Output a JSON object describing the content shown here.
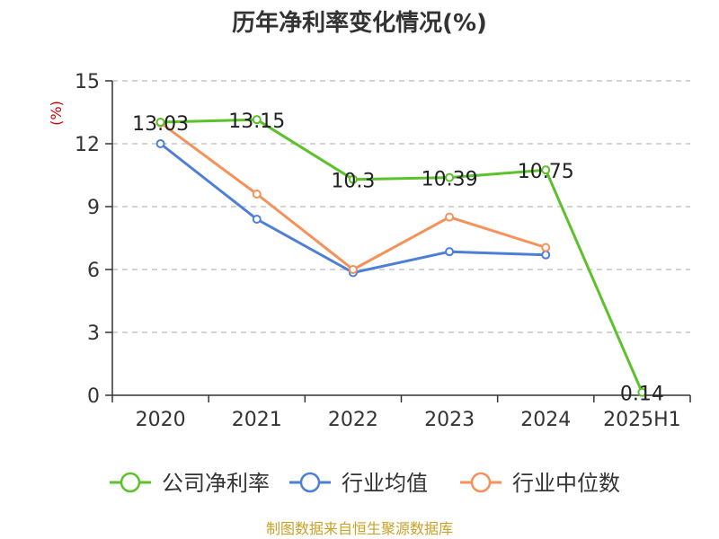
{
  "chart_data": {
    "type": "line",
    "title": "历年净利率变化情况(%)",
    "ylabel": "(%)",
    "xlabel": "",
    "categories": [
      "2020",
      "2021",
      "2022",
      "2023",
      "2024",
      "2025H1"
    ],
    "ylim": [
      0,
      15
    ],
    "yticks": [
      0,
      3,
      6,
      9,
      12,
      15
    ],
    "grid": "horizontal dashed",
    "legend_position": "bottom",
    "series": [
      {
        "name": "公司净利率",
        "color": "#5cc12b",
        "values": [
          13.03,
          13.15,
          10.3,
          10.39,
          10.75,
          0.14
        ],
        "labels": [
          "13.03",
          "13.15",
          "10.3",
          "10.39",
          "10.75",
          "0.14"
        ]
      },
      {
        "name": "行业均值",
        "color": "#4e7fd6",
        "values": [
          12.0,
          8.4,
          5.85,
          6.85,
          6.7,
          null
        ]
      },
      {
        "name": "行业中位数",
        "color": "#f5925a",
        "values": [
          13.0,
          9.6,
          6.0,
          8.5,
          7.05,
          null
        ]
      }
    ],
    "source": "制图数据来自恒生聚源数据库"
  }
}
